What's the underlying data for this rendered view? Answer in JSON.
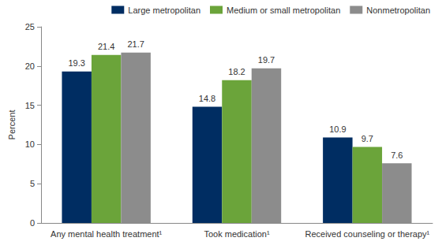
{
  "chart_data": {
    "type": "bar",
    "categories": [
      "Any mental health treatment¹",
      "Took medication¹",
      "Received counseling or therapy¹"
    ],
    "series": [
      {
        "name": "Large metropolitan",
        "color": "#002d62",
        "values": [
          19.3,
          14.8,
          10.9
        ]
      },
      {
        "name": "Medium or small metropolitan",
        "color": "#6ba43a",
        "values": [
          21.4,
          18.2,
          9.7
        ]
      },
      {
        "name": "Nonmetropolitan",
        "color": "#8c8c8c",
        "values": [
          21.7,
          19.7,
          7.6
        ]
      }
    ],
    "y_label": "Percent",
    "ylim": [
      0,
      25
    ],
    "yticks": [
      0,
      5,
      10,
      15,
      20,
      25
    ],
    "grid": false,
    "legend": "top-right",
    "data_labels": true
  }
}
